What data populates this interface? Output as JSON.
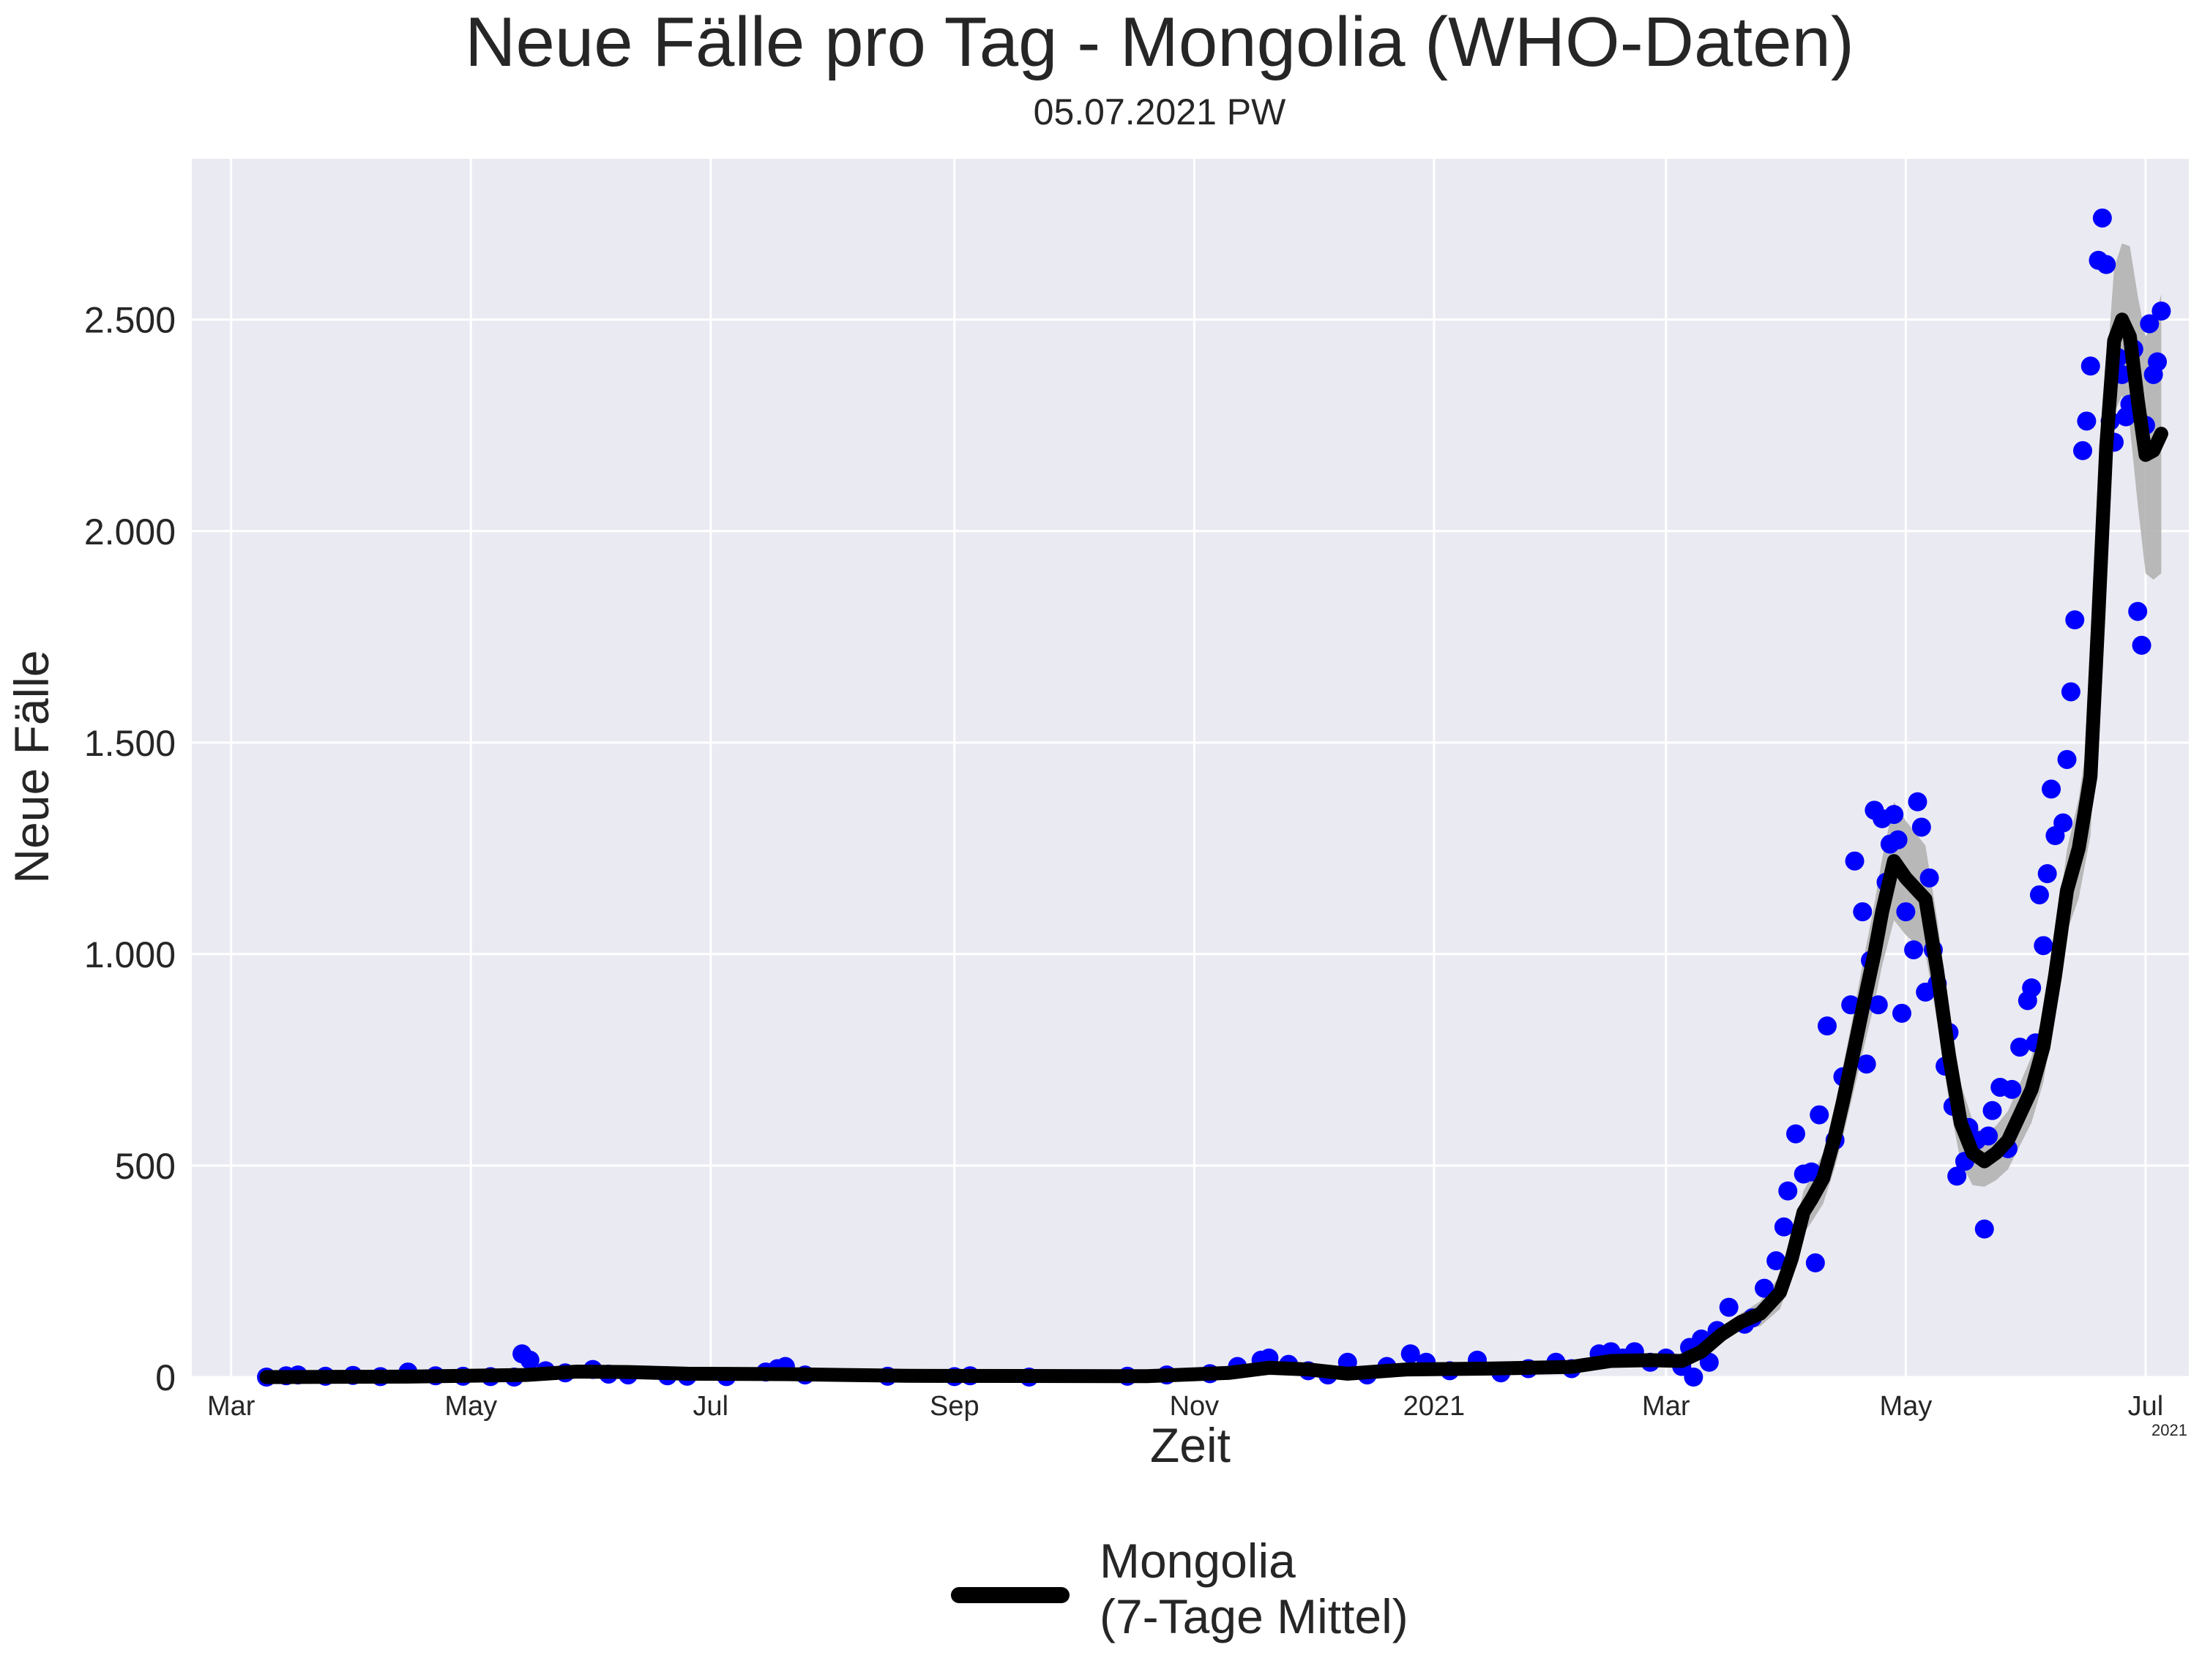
{
  "chart_data": {
    "type": "line",
    "title": "Neue Fälle pro Tag - Mongolia (WHO-Daten)",
    "subtitle": "05.07.2021 PW",
    "xlabel": "Zeit",
    "ylabel": "Neue Fälle",
    "x_offset_label": "2021",
    "x_range": [
      "2020-02-20",
      "2021-07-12"
    ],
    "ylim": [
      0,
      2880
    ],
    "grid": true,
    "legend_position": "bottom-center",
    "y_ticks": [
      {
        "value": 0,
        "label": "0"
      },
      {
        "value": 500,
        "label": "500"
      },
      {
        "value": 1000,
        "label": "1.000"
      },
      {
        "value": 1500,
        "label": "1.500"
      },
      {
        "value": 2000,
        "label": "2.000"
      },
      {
        "value": 2500,
        "label": "2.500"
      }
    ],
    "x_ticks": [
      {
        "date": "2020-03-01",
        "label": "Mar"
      },
      {
        "date": "2020-05-01",
        "label": "May"
      },
      {
        "date": "2020-07-01",
        "label": "Jul"
      },
      {
        "date": "2020-09-01",
        "label": "Sep"
      },
      {
        "date": "2020-11-01",
        "label": "Nov"
      },
      {
        "date": "2021-01-01",
        "label": "2021"
      },
      {
        "date": "2021-03-01",
        "label": "Mar"
      },
      {
        "date": "2021-05-01",
        "label": "May"
      },
      {
        "date": "2021-07-01",
        "label": "Jul"
      }
    ],
    "colors": {
      "background": "#eaeaf2",
      "grid": "#ffffff",
      "points": "#0000ff",
      "line": "#000000",
      "band": "#b3b3b3"
    },
    "series": [
      {
        "name": "Mongolia\n(7-Tage Mittel)",
        "kind": "rolling-mean",
        "data": [
          [
            "2020-03-10",
            0
          ],
          [
            "2020-04-15",
            1
          ],
          [
            "2020-05-15",
            5
          ],
          [
            "2020-05-28",
            13
          ],
          [
            "2020-06-10",
            12
          ],
          [
            "2020-06-25",
            8
          ],
          [
            "2020-07-20",
            7
          ],
          [
            "2020-08-20",
            3
          ],
          [
            "2020-10-20",
            2
          ],
          [
            "2020-11-10",
            10
          ],
          [
            "2020-11-20",
            22
          ],
          [
            "2020-11-30",
            18
          ],
          [
            "2020-12-10",
            8
          ],
          [
            "2020-12-25",
            18
          ],
          [
            "2021-01-15",
            20
          ],
          [
            "2021-02-05",
            24
          ],
          [
            "2021-02-15",
            38
          ],
          [
            "2021-02-25",
            40
          ],
          [
            "2021-03-05",
            38
          ],
          [
            "2021-03-10",
            60
          ],
          [
            "2021-03-15",
            100
          ],
          [
            "2021-03-20",
            130
          ],
          [
            "2021-03-25",
            150
          ],
          [
            "2021-03-30",
            200
          ],
          [
            "2021-04-02",
            280
          ],
          [
            "2021-04-05",
            390
          ],
          [
            "2021-04-07",
            420
          ],
          [
            "2021-04-10",
            470
          ],
          [
            "2021-04-13",
            570
          ],
          [
            "2021-04-15",
            650
          ],
          [
            "2021-04-18",
            780
          ],
          [
            "2021-04-20",
            870
          ],
          [
            "2021-04-23",
            1000
          ],
          [
            "2021-04-25",
            1100
          ],
          [
            "2021-04-28",
            1220
          ],
          [
            "2021-05-01",
            1180
          ],
          [
            "2021-05-03",
            1160
          ],
          [
            "2021-05-06",
            1130
          ],
          [
            "2021-05-09",
            960
          ],
          [
            "2021-05-12",
            760
          ],
          [
            "2021-05-15",
            600
          ],
          [
            "2021-05-18",
            530
          ],
          [
            "2021-05-21",
            510
          ],
          [
            "2021-05-24",
            530
          ],
          [
            "2021-05-27",
            560
          ],
          [
            "2021-05-30",
            620
          ],
          [
            "2021-06-02",
            680
          ],
          [
            "2021-06-05",
            780
          ],
          [
            "2021-06-08",
            950
          ],
          [
            "2021-06-11",
            1150
          ],
          [
            "2021-06-14",
            1250
          ],
          [
            "2021-06-17",
            1420
          ],
          [
            "2021-06-19",
            1800
          ],
          [
            "2021-06-21",
            2200
          ],
          [
            "2021-06-23",
            2450
          ],
          [
            "2021-06-25",
            2500
          ],
          [
            "2021-06-27",
            2460
          ],
          [
            "2021-06-29",
            2310
          ],
          [
            "2021-07-01",
            2180
          ],
          [
            "2021-07-03",
            2190
          ],
          [
            "2021-07-05",
            2230
          ]
        ],
        "band_halfwidth": [
          [
            "2021-03-01",
            0
          ],
          [
            "2021-03-20",
            20
          ],
          [
            "2021-04-10",
            60
          ],
          [
            "2021-04-28",
            140
          ],
          [
            "2021-05-10",
            120
          ],
          [
            "2021-05-21",
            60
          ],
          [
            "2021-06-10",
            90
          ],
          [
            "2021-06-20",
            160
          ],
          [
            "2021-06-25",
            180
          ],
          [
            "2021-07-01",
            280
          ],
          [
            "2021-07-05",
            330
          ]
        ]
      },
      {
        "name": "",
        "kind": "daily-points",
        "data": [
          [
            "2020-03-10",
            0
          ],
          [
            "2020-03-15",
            3
          ],
          [
            "2020-03-18",
            5
          ],
          [
            "2020-03-25",
            2
          ],
          [
            "2020-04-01",
            4
          ],
          [
            "2020-04-08",
            1
          ],
          [
            "2020-04-15",
            12
          ],
          [
            "2020-04-22",
            3
          ],
          [
            "2020-04-29",
            2
          ],
          [
            "2020-05-06",
            1
          ],
          [
            "2020-05-12",
            0
          ],
          [
            "2020-05-14",
            55
          ],
          [
            "2020-05-16",
            40
          ],
          [
            "2020-05-20",
            15
          ],
          [
            "2020-05-25",
            10
          ],
          [
            "2020-06-01",
            18
          ],
          [
            "2020-06-05",
            7
          ],
          [
            "2020-06-10",
            5
          ],
          [
            "2020-06-20",
            3
          ],
          [
            "2020-06-25",
            2
          ],
          [
            "2020-07-05",
            1
          ],
          [
            "2020-07-15",
            12
          ],
          [
            "2020-07-18",
            20
          ],
          [
            "2020-07-20",
            25
          ],
          [
            "2020-07-25",
            5
          ],
          [
            "2020-08-15",
            2
          ],
          [
            "2020-09-01",
            1
          ],
          [
            "2020-09-05",
            3
          ],
          [
            "2020-09-20",
            0
          ],
          [
            "2020-10-15",
            2
          ],
          [
            "2020-10-25",
            5
          ],
          [
            "2020-11-05",
            8
          ],
          [
            "2020-11-12",
            25
          ],
          [
            "2020-11-18",
            40
          ],
          [
            "2020-11-20",
            45
          ],
          [
            "2020-11-25",
            30
          ],
          [
            "2020-11-30",
            15
          ],
          [
            "2020-12-05",
            5
          ],
          [
            "2020-12-10",
            35
          ],
          [
            "2020-12-15",
            5
          ],
          [
            "2020-12-20",
            25
          ],
          [
            "2020-12-26",
            55
          ],
          [
            "2020-12-30",
            35
          ],
          [
            "2021-01-05",
            15
          ],
          [
            "2021-01-12",
            40
          ],
          [
            "2021-01-18",
            10
          ],
          [
            "2021-01-25",
            20
          ],
          [
            "2021-02-01",
            35
          ],
          [
            "2021-02-05",
            20
          ],
          [
            "2021-02-12",
            55
          ],
          [
            "2021-02-15",
            60
          ],
          [
            "2021-02-18",
            45
          ],
          [
            "2021-02-21",
            60
          ],
          [
            "2021-02-25",
            35
          ],
          [
            "2021-03-01",
            45
          ],
          [
            "2021-03-05",
            25
          ],
          [
            "2021-03-07",
            70
          ],
          [
            "2021-03-08",
            0
          ],
          [
            "2021-03-10",
            90
          ],
          [
            "2021-03-12",
            35
          ],
          [
            "2021-03-14",
            110
          ],
          [
            "2021-03-17",
            165
          ],
          [
            "2021-03-21",
            125
          ],
          [
            "2021-03-23",
            140
          ],
          [
            "2021-03-26",
            210
          ],
          [
            "2021-03-29",
            275
          ],
          [
            "2021-03-31",
            355
          ],
          [
            "2021-04-01",
            440
          ],
          [
            "2021-04-03",
            575
          ],
          [
            "2021-04-05",
            480
          ],
          [
            "2021-04-07",
            485
          ],
          [
            "2021-04-08",
            270
          ],
          [
            "2021-04-09",
            620
          ],
          [
            "2021-04-11",
            830
          ],
          [
            "2021-04-13",
            560
          ],
          [
            "2021-04-15",
            710
          ],
          [
            "2021-04-17",
            880
          ],
          [
            "2021-04-18",
            1220
          ],
          [
            "2021-04-20",
            1100
          ],
          [
            "2021-04-21",
            740
          ],
          [
            "2021-04-22",
            985
          ],
          [
            "2021-04-23",
            1340
          ],
          [
            "2021-04-24",
            880
          ],
          [
            "2021-04-25",
            1320
          ],
          [
            "2021-04-26",
            1170
          ],
          [
            "2021-04-27",
            1260
          ],
          [
            "2021-04-28",
            1330
          ],
          [
            "2021-04-29",
            1270
          ],
          [
            "2021-04-30",
            860
          ],
          [
            "2021-05-01",
            1100
          ],
          [
            "2021-05-03",
            1010
          ],
          [
            "2021-05-04",
            1360
          ],
          [
            "2021-05-05",
            1300
          ],
          [
            "2021-05-06",
            910
          ],
          [
            "2021-05-07",
            1180
          ],
          [
            "2021-05-08",
            1010
          ],
          [
            "2021-05-09",
            930
          ],
          [
            "2021-05-11",
            735
          ],
          [
            "2021-05-12",
            815
          ],
          [
            "2021-05-13",
            640
          ],
          [
            "2021-05-14",
            475
          ],
          [
            "2021-05-16",
            510
          ],
          [
            "2021-05-17",
            590
          ],
          [
            "2021-05-19",
            560
          ],
          [
            "2021-05-21",
            350
          ],
          [
            "2021-05-22",
            570
          ],
          [
            "2021-05-23",
            630
          ],
          [
            "2021-05-25",
            685
          ],
          [
            "2021-05-27",
            540
          ],
          [
            "2021-05-28",
            680
          ],
          [
            "2021-05-30",
            780
          ],
          [
            "2021-06-01",
            890
          ],
          [
            "2021-06-02",
            920
          ],
          [
            "2021-06-03",
            790
          ],
          [
            "2021-06-04",
            1140
          ],
          [
            "2021-06-05",
            1020
          ],
          [
            "2021-06-06",
            1190
          ],
          [
            "2021-06-07",
            1390
          ],
          [
            "2021-06-08",
            1280
          ],
          [
            "2021-06-10",
            1310
          ],
          [
            "2021-06-11",
            1460
          ],
          [
            "2021-06-12",
            1620
          ],
          [
            "2021-06-13",
            1790
          ],
          [
            "2021-06-15",
            2190
          ],
          [
            "2021-06-16",
            2260
          ],
          [
            "2021-06-17",
            2390
          ],
          [
            "2021-06-19",
            2640
          ],
          [
            "2021-06-20",
            2740
          ],
          [
            "2021-06-21",
            2630
          ],
          [
            "2021-06-22",
            2260
          ],
          [
            "2021-06-23",
            2210
          ],
          [
            "2021-06-24",
            2410
          ],
          [
            "2021-06-25",
            2370
          ],
          [
            "2021-06-26",
            2270
          ],
          [
            "2021-06-27",
            2300
          ],
          [
            "2021-06-28",
            2430
          ],
          [
            "2021-06-29",
            1810
          ],
          [
            "2021-06-30",
            1730
          ],
          [
            "2021-07-01",
            2250
          ],
          [
            "2021-07-02",
            2490
          ],
          [
            "2021-07-03",
            2370
          ],
          [
            "2021-07-04",
            2400
          ],
          [
            "2021-07-05",
            2520
          ]
        ]
      }
    ]
  }
}
